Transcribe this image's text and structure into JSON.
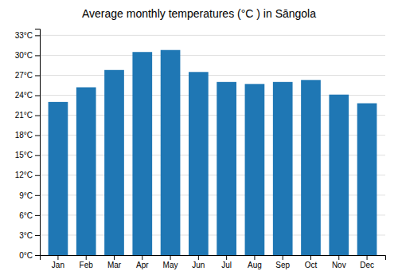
{
  "chart_data": {
    "type": "bar",
    "title": "Average monthly temperatures (°C ) in Sāngola",
    "categories": [
      "Jan",
      "Feb",
      "Mar",
      "Apr",
      "May",
      "Jun",
      "Jul",
      "Aug",
      "Sep",
      "Oct",
      "Nov",
      "Dec"
    ],
    "values": [
      23.0,
      25.2,
      27.8,
      30.5,
      30.8,
      27.5,
      26.0,
      25.7,
      26.0,
      26.3,
      24.1,
      22.8
    ],
    "ylim": [
      0,
      34
    ],
    "yticks": [
      {
        "value": 0,
        "label": "0°C"
      },
      {
        "value": 3,
        "label": "3°C"
      },
      {
        "value": 6,
        "label": "6°C"
      },
      {
        "value": 9,
        "label": "9°C"
      },
      {
        "value": 12,
        "label": "12°C"
      },
      {
        "value": 15,
        "label": "15°C"
      },
      {
        "value": 18,
        "label": "18°C"
      },
      {
        "value": 21,
        "label": "21°C"
      },
      {
        "value": 24,
        "label": "24°C"
      },
      {
        "value": 27,
        "label": "27°C"
      },
      {
        "value": 30,
        "label": "30°C"
      },
      {
        "value": 33,
        "label": "33°C"
      }
    ],
    "grid": true
  }
}
